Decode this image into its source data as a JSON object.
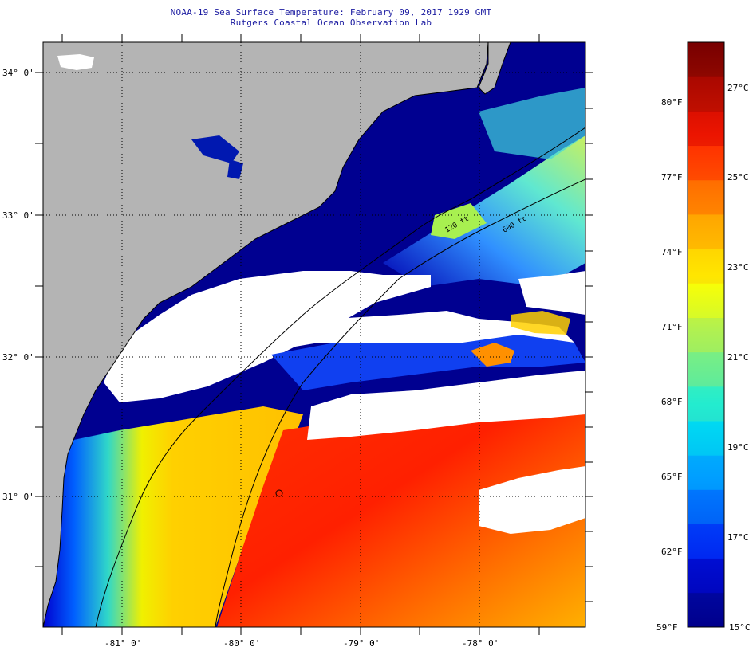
{
  "header": {
    "title": "NOAA-19 Sea Surface Temperature:  February 09, 2017 1929 GMT",
    "subtitle": "Rutgers Coastal Ocean Observation Lab"
  },
  "map": {
    "lat_labels": [
      "34° 0'",
      "33° 0'",
      "32° 0'",
      "31° 0'"
    ],
    "lon_labels": [
      "-81° 0'",
      "-80° 0'",
      "-79° 0'",
      "-78° 0'"
    ],
    "isobath_labels": [
      "120 ft",
      "600 ft"
    ],
    "land_color": "#b4b4b4",
    "cloud_color": "#ffffff"
  },
  "colorbar": {
    "fahrenheit_labels": [
      "80°F",
      "77°F",
      "74°F",
      "71°F",
      "68°F",
      "65°F",
      "62°F",
      "59°F"
    ],
    "celsius_labels": [
      "27°C",
      "25°C",
      "23°C",
      "21°C",
      "19°C",
      "17°C",
      "15°C"
    ],
    "colors": [
      "#00008c",
      "#0000c8",
      "#0032ff",
      "#0078ff",
      "#00b4ff",
      "#00e6f0",
      "#40f5b4",
      "#90f070",
      "#d2f032",
      "#ffff00",
      "#ffd200",
      "#ffa000",
      "#ff6400",
      "#ff2800",
      "#dc0000",
      "#aa0000",
      "#780000"
    ]
  }
}
